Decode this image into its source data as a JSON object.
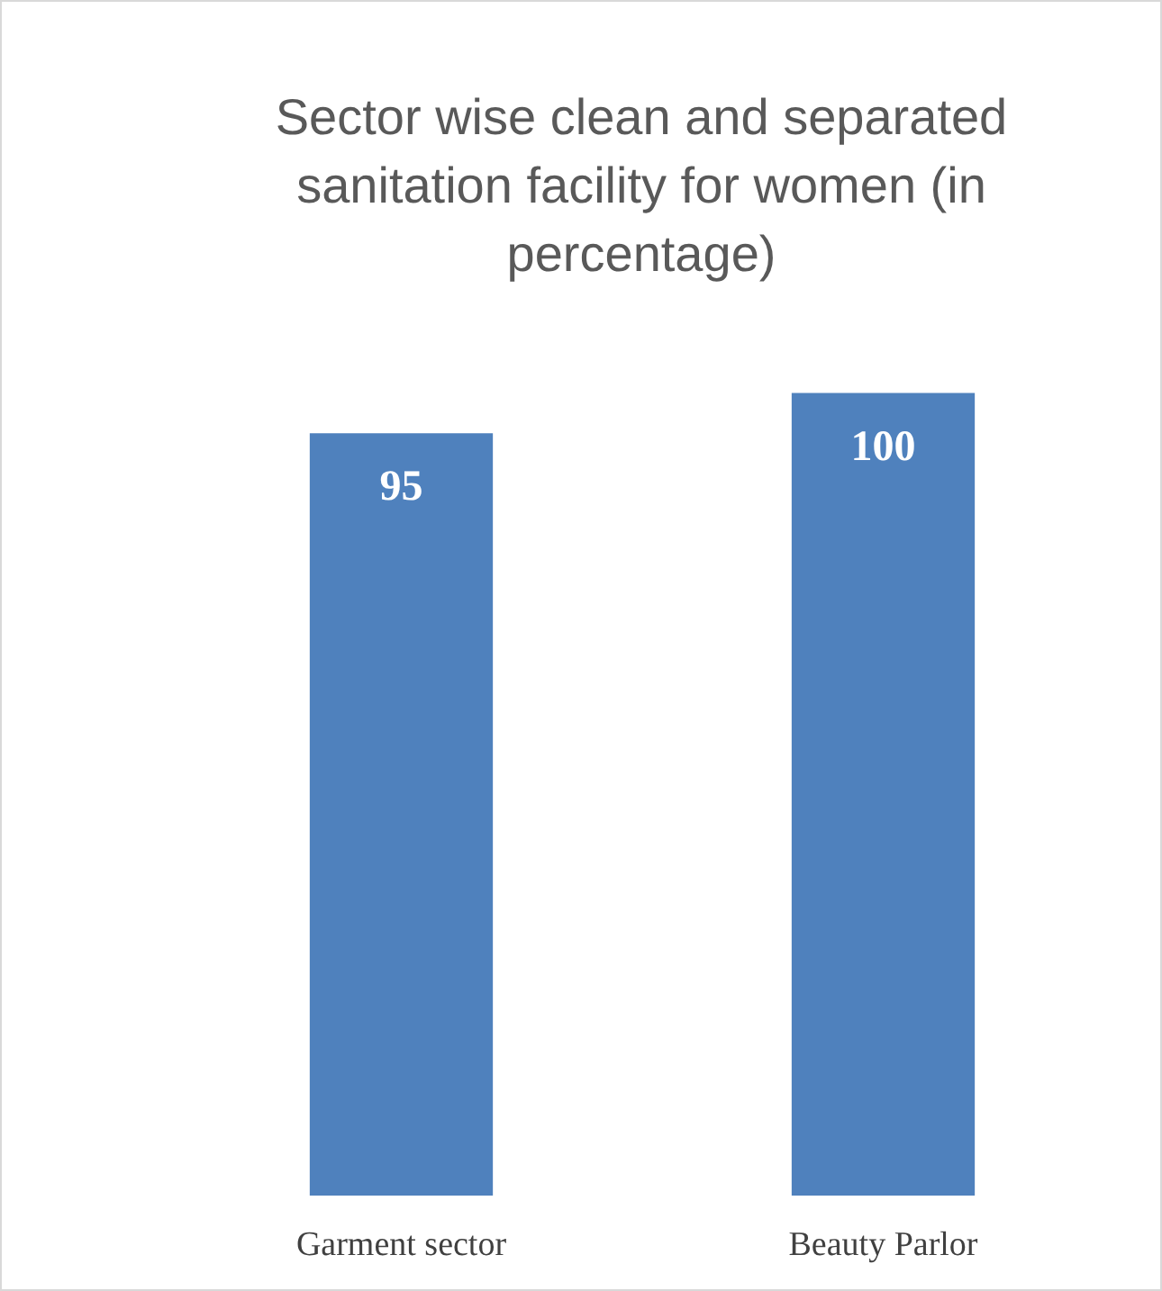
{
  "chart_data": {
    "type": "bar",
    "title": "Sector wise clean and separated sanitation facility for women (in percentage)",
    "categories": [
      "Garment sector",
      "Beauty Parlor"
    ],
    "values": [
      95,
      100
    ],
    "color": "#4f81bd",
    "data_labels": true
  }
}
